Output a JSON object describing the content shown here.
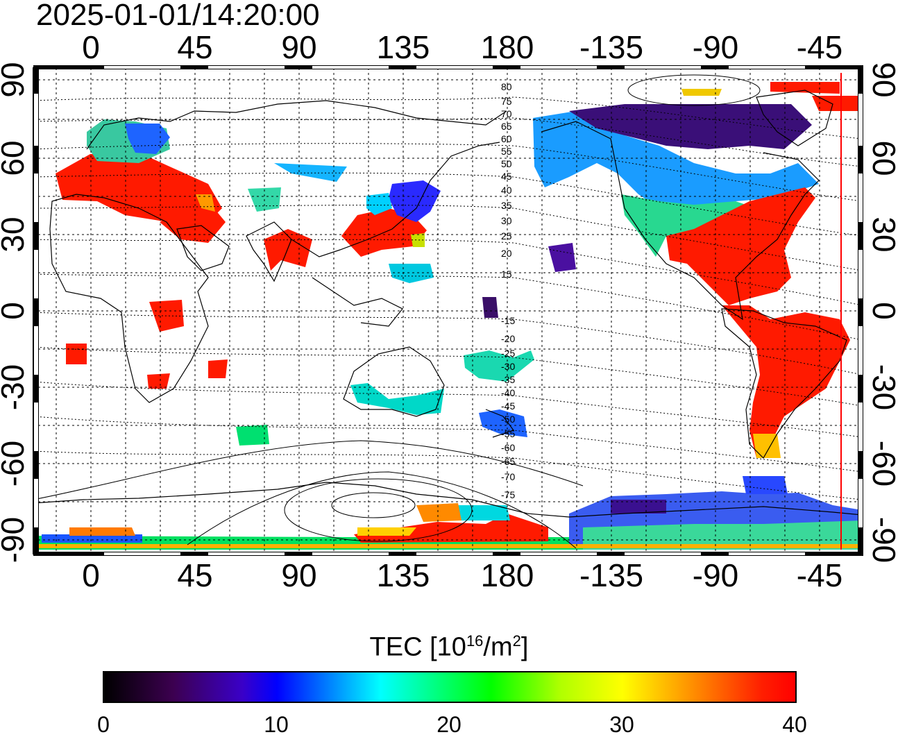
{
  "title": "2025-01-01/14:20:00",
  "map": {
    "x_ticks": [
      "0",
      "45",
      "90",
      "135",
      "180",
      "-135",
      "-90",
      "-45"
    ],
    "y_ticks": [
      "90",
      "60",
      "30",
      "0",
      "-30",
      "-60",
      "-90"
    ],
    "contour_labels": [
      "80",
      "75",
      "70",
      "65",
      "60",
      "55",
      "50",
      "45",
      "40",
      "35",
      "30",
      "25",
      "20",
      "15",
      "-15",
      "-20",
      "-25",
      "-30",
      "-35",
      "-40",
      "-45",
      "-50",
      "-55",
      "-60",
      "-65",
      "-70",
      "-75"
    ]
  },
  "colorbar": {
    "title_main": "TEC  [10",
    "title_exp": "16",
    "title_mid": "/m",
    "title_exp2": "2",
    "title_end": "]",
    "ticks": [
      "0",
      "10",
      "20",
      "30",
      "40"
    ],
    "min": 0,
    "max": 40
  },
  "colors": {
    "low": "#3c0050",
    "blue": "#0000ff",
    "cyan": "#00ffff",
    "green": "#00ff00",
    "yellow": "#ffff00",
    "high": "#ff0000",
    "meridian_line": "#ff0000"
  }
}
